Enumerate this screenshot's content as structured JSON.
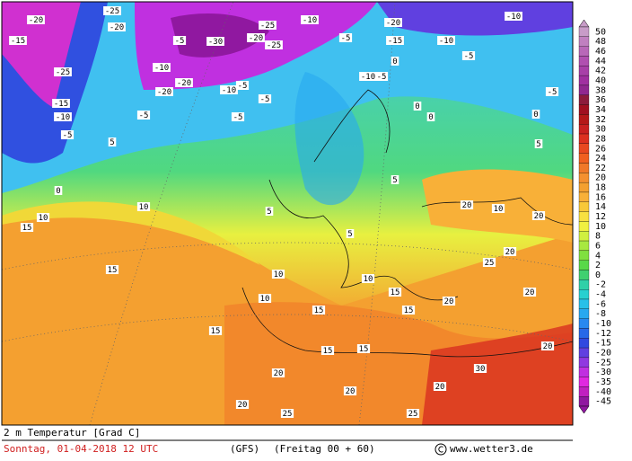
{
  "map": {
    "contour_labels": [
      "-20",
      "-25",
      "-20",
      "-15",
      "-25",
      "-15",
      "-10",
      "-5",
      "-30",
      "-5",
      "-20",
      "-25",
      "-25",
      "-10",
      "-5",
      "-20",
      "-15",
      "-10",
      "-10",
      "-5",
      "0",
      "-10",
      "-20",
      "-20",
      "-10",
      "-5",
      "-5",
      "-5",
      "-5",
      "-10",
      "-5",
      "-5",
      "0",
      "0",
      "5",
      "0",
      "10",
      "15",
      "10",
      "15",
      "5",
      "5",
      "5",
      "10",
      "10",
      "15",
      "15",
      "10",
      "15",
      "10",
      "20",
      "20",
      "20",
      "25",
      "20",
      "20",
      "30",
      "20",
      "20",
      "20",
      "20",
      "25",
      "25",
      "0",
      "5",
      "15",
      "15",
      "15",
      "20"
    ],
    "color_scale": [
      {
        "value": 50,
        "color": "#c89cc8"
      },
      {
        "value": 48,
        "color": "#c080c0"
      },
      {
        "value": 46,
        "color": "#b868b8"
      },
      {
        "value": 44,
        "color": "#b050b0"
      },
      {
        "value": 42,
        "color": "#a840a8"
      },
      {
        "value": 40,
        "color": "#a030a0"
      },
      {
        "value": 38,
        "color": "#902890"
      },
      {
        "value": 36,
        "color": "#8c1c3c"
      },
      {
        "value": 34,
        "color": "#a01020"
      },
      {
        "value": 32,
        "color": "#b41818"
      },
      {
        "value": 30,
        "color": "#c82020"
      },
      {
        "value": 28,
        "color": "#dc3020"
      },
      {
        "value": 26,
        "color": "#e84820"
      },
      {
        "value": 24,
        "color": "#f06020"
      },
      {
        "value": 22,
        "color": "#f07828"
      },
      {
        "value": 20,
        "color": "#f49030"
      },
      {
        "value": 18,
        "color": "#f4a030"
      },
      {
        "value": 16,
        "color": "#f8b038"
      },
      {
        "value": 14,
        "color": "#f8c838"
      },
      {
        "value": 12,
        "color": "#f8e040"
      },
      {
        "value": 10,
        "color": "#f0f040"
      },
      {
        "value": 8,
        "color": "#d0f040"
      },
      {
        "value": 6,
        "color": "#a8e840"
      },
      {
        "value": 4,
        "color": "#80e040"
      },
      {
        "value": 2,
        "color": "#58d848"
      },
      {
        "value": 0,
        "color": "#40d070"
      },
      {
        "value": -2,
        "color": "#30d0a8"
      },
      {
        "value": -4,
        "color": "#28d0d0"
      },
      {
        "value": -6,
        "color": "#28c0e8"
      },
      {
        "value": -8,
        "color": "#28a8f0"
      },
      {
        "value": -10,
        "color": "#2888f0"
      },
      {
        "value": -12,
        "color": "#2868e8"
      },
      {
        "value": -15,
        "color": "#3048e0"
      },
      {
        "value": -20,
        "color": "#6040e0"
      },
      {
        "value": -25,
        "color": "#9038e0"
      },
      {
        "value": -30,
        "color": "#c030e0"
      },
      {
        "value": -35,
        "color": "#e028e0"
      },
      {
        "value": -40,
        "color": "#c020c0"
      },
      {
        "value": -45,
        "color": "#9018a0"
      }
    ]
  },
  "footer": {
    "title": "2 m Temperatur [Grad C]",
    "date": "Sonntag, 01-04-2018  12 UTC",
    "model": "(GFS)",
    "run": "(Freitag 00 + 60)",
    "credit": "www.wetter3.de"
  }
}
